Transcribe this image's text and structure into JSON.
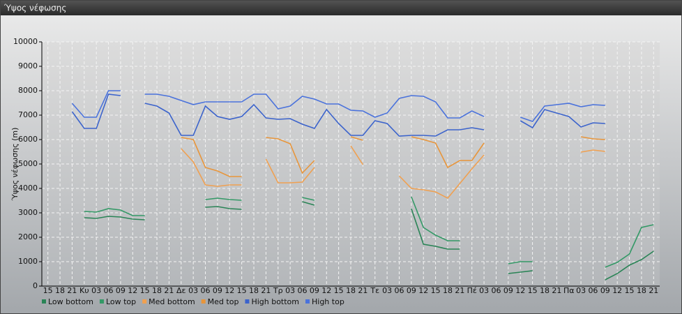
{
  "chart_data": {
    "type": "line",
    "title": "Ύψος νέφωσης",
    "y_label": "Ύψος νέφωσης (m)",
    "categories": [
      "15",
      "18",
      "21",
      "Κυ",
      "03",
      "06",
      "09",
      "12",
      "15",
      "18",
      "21",
      "Δε",
      "03",
      "06",
      "09",
      "12",
      "15",
      "18",
      "21",
      "Τρ",
      "03",
      "06",
      "09",
      "12",
      "15",
      "18",
      "21",
      "Τε",
      "03",
      "06",
      "09",
      "12",
      "15",
      "18",
      "21",
      "Πέ",
      "03",
      "06",
      "09",
      "12",
      "15",
      "18",
      "21",
      "Πα",
      "03",
      "06",
      "09",
      "12",
      "15",
      "18",
      "21"
    ],
    "ylim": [
      0,
      10000
    ],
    "yticks": [
      0,
      1000,
      2000,
      3000,
      4000,
      5000,
      6000,
      7000,
      8000,
      9000,
      10000
    ],
    "grid": true,
    "series": [
      {
        "name": "Low bottom",
        "color": "#2a8456",
        "values": [
          null,
          null,
          null,
          2800,
          2771,
          2857,
          2829,
          2743,
          2714,
          null,
          null,
          null,
          null,
          3229,
          3257,
          3171,
          3143,
          null,
          null,
          null,
          null,
          3457,
          3314,
          null,
          null,
          null,
          null,
          null,
          null,
          null,
          3171,
          1714,
          1629,
          1514,
          1514,
          null,
          null,
          null,
          514,
          571,
          629,
          null,
          null,
          null,
          null,
          null,
          257,
          514,
          857,
          1086,
          1429
        ]
      },
      {
        "name": "Low top",
        "color": "#339966",
        "values": [
          null,
          null,
          null,
          3057,
          3029,
          3171,
          3114,
          2886,
          2886,
          null,
          null,
          null,
          null,
          3543,
          3600,
          3543,
          3514,
          null,
          null,
          null,
          null,
          3629,
          3514,
          null,
          null,
          null,
          null,
          null,
          null,
          null,
          3657,
          2400,
          2086,
          1857,
          1857,
          null,
          null,
          null,
          914,
          1000,
          1000,
          null,
          null,
          null,
          null,
          null,
          771,
          971,
          1314,
          2400,
          2514
        ]
      },
      {
        "name": "Med bottom",
        "color": "#f0a050",
        "values": [
          null,
          null,
          null,
          null,
          null,
          null,
          null,
          null,
          null,
          null,
          null,
          5629,
          5086,
          4143,
          4086,
          4143,
          4143,
          null,
          5200,
          4229,
          4229,
          4257,
          4857,
          null,
          null,
          5743,
          4971,
          null,
          null,
          4514,
          4000,
          3943,
          3857,
          3600,
          4200,
          4800,
          5371,
          null,
          null,
          null,
          null,
          null,
          null,
          null,
          5486,
          5571,
          5514,
          null,
          null,
          null,
          null
        ]
      },
      {
        "name": "Med top",
        "color": "#e8953a",
        "values": [
          null,
          null,
          null,
          null,
          null,
          null,
          null,
          null,
          null,
          null,
          null,
          6086,
          6000,
          4857,
          4714,
          4486,
          4486,
          null,
          6086,
          6029,
          5829,
          4629,
          5143,
          null,
          null,
          6114,
          5971,
          null,
          null,
          null,
          6114,
          6000,
          5857,
          4857,
          5143,
          5143,
          5857,
          null,
          null,
          null,
          null,
          null,
          null,
          null,
          6114,
          6029,
          6000,
          null,
          null,
          null,
          null
        ]
      },
      {
        "name": "High bottom",
        "color": "#3b63cc",
        "values": [
          null,
          null,
          7143,
          6457,
          6457,
          7857,
          7800,
          null,
          7486,
          7371,
          7086,
          6171,
          6171,
          7371,
          6943,
          6829,
          6943,
          7429,
          6886,
          6829,
          6857,
          6629,
          6457,
          7229,
          6657,
          6171,
          6171,
          6771,
          6657,
          6143,
          6171,
          6171,
          6143,
          6400,
          6400,
          6486,
          6400,
          null,
          null,
          6771,
          6486,
          7229,
          7086,
          6943,
          6514,
          6686,
          6657,
          null,
          null,
          null,
          null
        ]
      },
      {
        "name": "High top",
        "color": "#4a72dc",
        "values": [
          null,
          null,
          7486,
          6914,
          6914,
          8000,
          8000,
          null,
          7857,
          7857,
          7771,
          7600,
          7430,
          7543,
          7543,
          7543,
          7543,
          7857,
          7857,
          7257,
          7371,
          7771,
          7657,
          7457,
          7457,
          7200,
          7171,
          6914,
          7086,
          7686,
          7800,
          7771,
          7543,
          6886,
          6886,
          7171,
          6943,
          null,
          null,
          6914,
          6743,
          7371,
          7429,
          7486,
          7343,
          7429,
          7400,
          null,
          null,
          null,
          null
        ]
      }
    ]
  }
}
